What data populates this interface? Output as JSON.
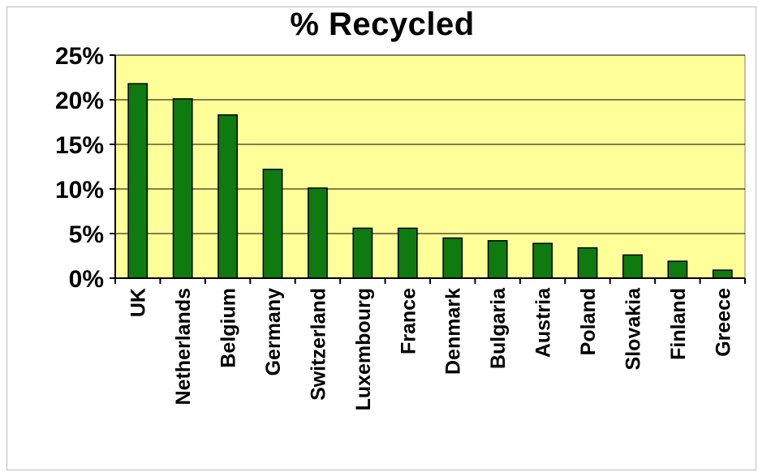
{
  "chart_data": {
    "type": "bar",
    "title": "% Recycled",
    "xlabel": "",
    "ylabel": "",
    "categories": [
      "UK",
      "Netherlands",
      "Belgium",
      "Germany",
      "Switzerland",
      "Luxembourg",
      "France",
      "Denmark",
      "Bulgaria",
      "Austria",
      "Poland",
      "Slovakia",
      "Finland",
      "Greece"
    ],
    "values": [
      21.8,
      20.1,
      18.3,
      12.2,
      10.1,
      5.6,
      5.6,
      4.5,
      4.2,
      3.9,
      3.4,
      2.6,
      1.9,
      0.9
    ],
    "ylim": [
      0,
      25
    ],
    "yticks": [
      "0%",
      "5%",
      "10%",
      "15%",
      "20%",
      "25%"
    ],
    "ytick_values": [
      0,
      5,
      10,
      15,
      20,
      25
    ],
    "grid": true,
    "colors": {
      "bar": "#0f7a0f",
      "bar_stroke": "#000000",
      "plot_background": "#ffff99",
      "grid": "#000000"
    }
  }
}
